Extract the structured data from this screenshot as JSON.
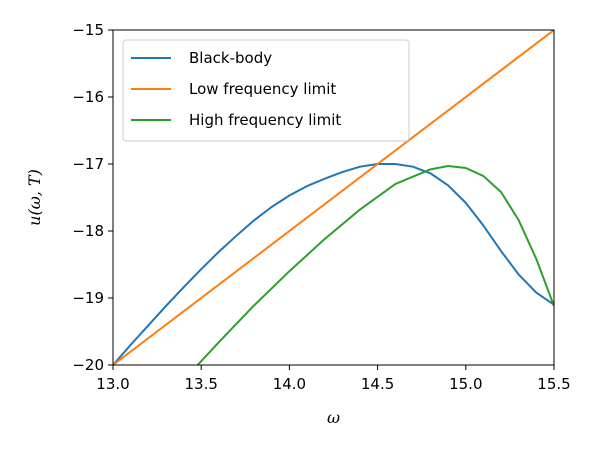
{
  "chart_data": {
    "type": "line",
    "title": "",
    "xlabel": "ω",
    "ylabel": "u(ω, T)",
    "xlim": [
      13.0,
      15.5
    ],
    "ylim": [
      -20,
      -15
    ],
    "x_ticks": [
      13.0,
      13.5,
      14.0,
      14.5,
      15.0,
      15.5
    ],
    "x_tick_labels": [
      "13.0",
      "13.5",
      "14.0",
      "14.5",
      "15.0",
      "15.5"
    ],
    "y_ticks": [
      -20,
      -19,
      -18,
      -17,
      -16,
      -15
    ],
    "y_tick_labels": [
      "−20",
      "−19",
      "−18",
      "−17",
      "−16",
      "−15"
    ],
    "grid": false,
    "legend_position": "top-left",
    "series": [
      {
        "name": "Black-body",
        "color": "#1f77b4",
        "x": [
          13.0,
          13.1,
          13.2,
          13.3,
          13.4,
          13.5,
          13.6,
          13.7,
          13.8,
          13.9,
          14.0,
          14.1,
          14.2,
          14.3,
          14.4,
          14.5,
          14.6,
          14.7,
          14.8,
          14.9,
          15.0,
          15.1,
          15.2,
          15.3,
          15.4,
          15.5
        ],
        "y": [
          -20.0,
          -19.7,
          -19.41,
          -19.12,
          -18.84,
          -18.57,
          -18.31,
          -18.07,
          -17.84,
          -17.64,
          -17.47,
          -17.33,
          -17.22,
          -17.12,
          -17.04,
          -17.0,
          -17.0,
          -17.04,
          -17.14,
          -17.32,
          -17.58,
          -17.92,
          -18.3,
          -18.65,
          -18.92,
          -19.1
        ]
      },
      {
        "name": "Low frequency limit",
        "color": "#ff7f0e",
        "x": [
          13.0,
          15.5
        ],
        "y": [
          -20.0,
          -15.0
        ]
      },
      {
        "name": "High frequency limit",
        "color": "#2ca02c",
        "x": [
          13.48,
          13.6,
          13.8,
          14.0,
          14.2,
          14.4,
          14.6,
          14.8,
          14.9,
          15.0,
          15.1,
          15.2,
          15.3,
          15.4,
          15.5
        ],
        "y": [
          -20.0,
          -19.66,
          -19.11,
          -18.6,
          -18.12,
          -17.68,
          -17.3,
          -17.08,
          -17.03,
          -17.06,
          -17.18,
          -17.42,
          -17.84,
          -18.42,
          -19.12
        ]
      }
    ]
  }
}
